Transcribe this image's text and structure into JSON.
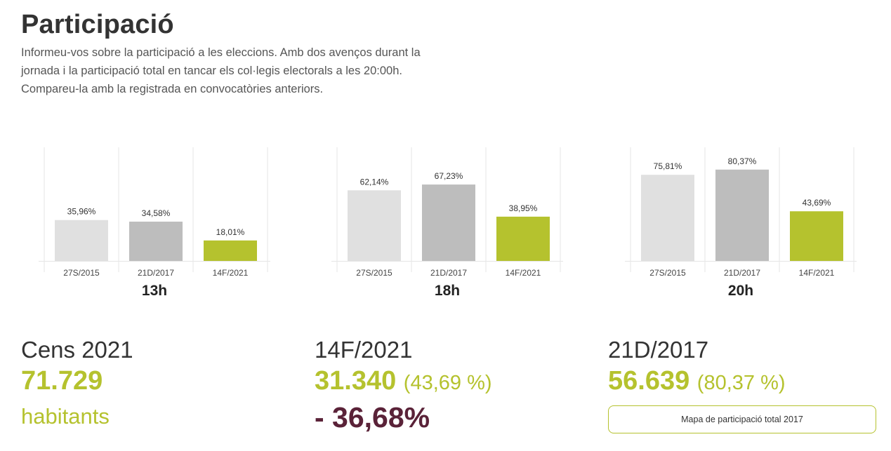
{
  "header": {
    "title": "Participació",
    "intro": "Informeu-vos sobre la participació a les eleccions. Amb dos avenços durant la jornada i la participació total en tancar els col·legis electorals a les 20:00h. Compareu-la amb la registrada en convocatòries anteriors."
  },
  "colors": {
    "bar_2015": "#e0e0e0",
    "bar_2017": "#bdbdbd",
    "bar_2021": "#b5c22e",
    "accent": "#b5c22e",
    "negative": "#5a2238"
  },
  "chart_data": [
    {
      "type": "bar",
      "title": "13h",
      "categories": [
        "27S/2015",
        "21D/2017",
        "14F/2021"
      ],
      "values": [
        35.96,
        34.58,
        18.01
      ],
      "value_labels": [
        "35,96%",
        "34,58%",
        "18,01%"
      ],
      "ylim": [
        0,
        100
      ],
      "grid": "vertical separators"
    },
    {
      "type": "bar",
      "title": "18h",
      "categories": [
        "27S/2015",
        "21D/2017",
        "14F/2021"
      ],
      "values": [
        62.14,
        67.23,
        38.95
      ],
      "value_labels": [
        "62,14%",
        "67,23%",
        "38,95%"
      ],
      "ylim": [
        0,
        100
      ],
      "grid": "vertical separators"
    },
    {
      "type": "bar",
      "title": "20h",
      "categories": [
        "27S/2015",
        "21D/2017",
        "14F/2021"
      ],
      "values": [
        75.81,
        80.37,
        43.69
      ],
      "value_labels": [
        "75,81%",
        "80,37%",
        "43,69%"
      ],
      "ylim": [
        0,
        100
      ],
      "grid": "vertical separators"
    }
  ],
  "stats": {
    "census": {
      "label": "Cens 2021",
      "value": "71.729",
      "unit": "habitants"
    },
    "current": {
      "label": "14F/2021",
      "value": "31.340",
      "pct": "(43,69 %)",
      "change": "- 36,68%"
    },
    "previous": {
      "label": "21D/2017",
      "value": "56.639",
      "pct": "(80,37 %)"
    }
  },
  "map_button": {
    "label": "Mapa de participació total 2017"
  }
}
